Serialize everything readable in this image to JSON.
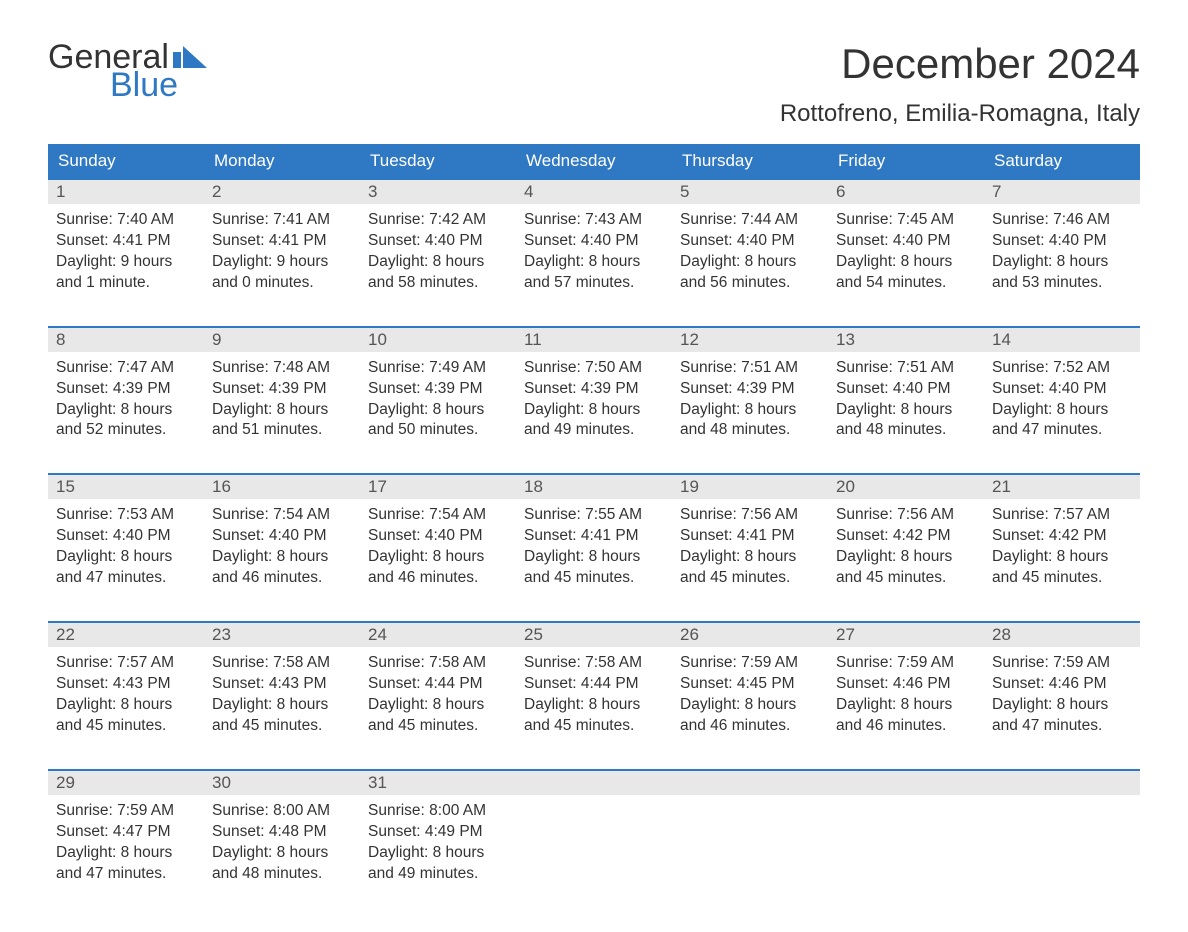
{
  "logo": {
    "word1": "General",
    "word2": "Blue",
    "word1_color": "#333333",
    "word2_color": "#2f78c4"
  },
  "title": "December 2024",
  "location": "Rottofreno, Emilia-Romagna, Italy",
  "colors": {
    "header_bg": "#2f78c4",
    "header_text": "#ffffff",
    "daynum_bg": "#e8e8e8",
    "week_border": "#2f78c4",
    "body_text": "#333333",
    "background": "#ffffff"
  },
  "fonts": {
    "title_size": 42,
    "location_size": 24,
    "header_size": 17,
    "daynum_size": 17,
    "body_size": 15.5
  },
  "weekdays": [
    "Sunday",
    "Monday",
    "Tuesday",
    "Wednesday",
    "Thursday",
    "Friday",
    "Saturday"
  ],
  "weeks": [
    {
      "days": [
        {
          "num": "1",
          "sunrise": "Sunrise: 7:40 AM",
          "sunset": "Sunset: 4:41 PM",
          "dl1": "Daylight: 9 hours",
          "dl2": "and 1 minute."
        },
        {
          "num": "2",
          "sunrise": "Sunrise: 7:41 AM",
          "sunset": "Sunset: 4:41 PM",
          "dl1": "Daylight: 9 hours",
          "dl2": "and 0 minutes."
        },
        {
          "num": "3",
          "sunrise": "Sunrise: 7:42 AM",
          "sunset": "Sunset: 4:40 PM",
          "dl1": "Daylight: 8 hours",
          "dl2": "and 58 minutes."
        },
        {
          "num": "4",
          "sunrise": "Sunrise: 7:43 AM",
          "sunset": "Sunset: 4:40 PM",
          "dl1": "Daylight: 8 hours",
          "dl2": "and 57 minutes."
        },
        {
          "num": "5",
          "sunrise": "Sunrise: 7:44 AM",
          "sunset": "Sunset: 4:40 PM",
          "dl1": "Daylight: 8 hours",
          "dl2": "and 56 minutes."
        },
        {
          "num": "6",
          "sunrise": "Sunrise: 7:45 AM",
          "sunset": "Sunset: 4:40 PM",
          "dl1": "Daylight: 8 hours",
          "dl2": "and 54 minutes."
        },
        {
          "num": "7",
          "sunrise": "Sunrise: 7:46 AM",
          "sunset": "Sunset: 4:40 PM",
          "dl1": "Daylight: 8 hours",
          "dl2": "and 53 minutes."
        }
      ]
    },
    {
      "days": [
        {
          "num": "8",
          "sunrise": "Sunrise: 7:47 AM",
          "sunset": "Sunset: 4:39 PM",
          "dl1": "Daylight: 8 hours",
          "dl2": "and 52 minutes."
        },
        {
          "num": "9",
          "sunrise": "Sunrise: 7:48 AM",
          "sunset": "Sunset: 4:39 PM",
          "dl1": "Daylight: 8 hours",
          "dl2": "and 51 minutes."
        },
        {
          "num": "10",
          "sunrise": "Sunrise: 7:49 AM",
          "sunset": "Sunset: 4:39 PM",
          "dl1": "Daylight: 8 hours",
          "dl2": "and 50 minutes."
        },
        {
          "num": "11",
          "sunrise": "Sunrise: 7:50 AM",
          "sunset": "Sunset: 4:39 PM",
          "dl1": "Daylight: 8 hours",
          "dl2": "and 49 minutes."
        },
        {
          "num": "12",
          "sunrise": "Sunrise: 7:51 AM",
          "sunset": "Sunset: 4:39 PM",
          "dl1": "Daylight: 8 hours",
          "dl2": "and 48 minutes."
        },
        {
          "num": "13",
          "sunrise": "Sunrise: 7:51 AM",
          "sunset": "Sunset: 4:40 PM",
          "dl1": "Daylight: 8 hours",
          "dl2": "and 48 minutes."
        },
        {
          "num": "14",
          "sunrise": "Sunrise: 7:52 AM",
          "sunset": "Sunset: 4:40 PM",
          "dl1": "Daylight: 8 hours",
          "dl2": "and 47 minutes."
        }
      ]
    },
    {
      "days": [
        {
          "num": "15",
          "sunrise": "Sunrise: 7:53 AM",
          "sunset": "Sunset: 4:40 PM",
          "dl1": "Daylight: 8 hours",
          "dl2": "and 47 minutes."
        },
        {
          "num": "16",
          "sunrise": "Sunrise: 7:54 AM",
          "sunset": "Sunset: 4:40 PM",
          "dl1": "Daylight: 8 hours",
          "dl2": "and 46 minutes."
        },
        {
          "num": "17",
          "sunrise": "Sunrise: 7:54 AM",
          "sunset": "Sunset: 4:40 PM",
          "dl1": "Daylight: 8 hours",
          "dl2": "and 46 minutes."
        },
        {
          "num": "18",
          "sunrise": "Sunrise: 7:55 AM",
          "sunset": "Sunset: 4:41 PM",
          "dl1": "Daylight: 8 hours",
          "dl2": "and 45 minutes."
        },
        {
          "num": "19",
          "sunrise": "Sunrise: 7:56 AM",
          "sunset": "Sunset: 4:41 PM",
          "dl1": "Daylight: 8 hours",
          "dl2": "and 45 minutes."
        },
        {
          "num": "20",
          "sunrise": "Sunrise: 7:56 AM",
          "sunset": "Sunset: 4:42 PM",
          "dl1": "Daylight: 8 hours",
          "dl2": "and 45 minutes."
        },
        {
          "num": "21",
          "sunrise": "Sunrise: 7:57 AM",
          "sunset": "Sunset: 4:42 PM",
          "dl1": "Daylight: 8 hours",
          "dl2": "and 45 minutes."
        }
      ]
    },
    {
      "days": [
        {
          "num": "22",
          "sunrise": "Sunrise: 7:57 AM",
          "sunset": "Sunset: 4:43 PM",
          "dl1": "Daylight: 8 hours",
          "dl2": "and 45 minutes."
        },
        {
          "num": "23",
          "sunrise": "Sunrise: 7:58 AM",
          "sunset": "Sunset: 4:43 PM",
          "dl1": "Daylight: 8 hours",
          "dl2": "and 45 minutes."
        },
        {
          "num": "24",
          "sunrise": "Sunrise: 7:58 AM",
          "sunset": "Sunset: 4:44 PM",
          "dl1": "Daylight: 8 hours",
          "dl2": "and 45 minutes."
        },
        {
          "num": "25",
          "sunrise": "Sunrise: 7:58 AM",
          "sunset": "Sunset: 4:44 PM",
          "dl1": "Daylight: 8 hours",
          "dl2": "and 45 minutes."
        },
        {
          "num": "26",
          "sunrise": "Sunrise: 7:59 AM",
          "sunset": "Sunset: 4:45 PM",
          "dl1": "Daylight: 8 hours",
          "dl2": "and 46 minutes."
        },
        {
          "num": "27",
          "sunrise": "Sunrise: 7:59 AM",
          "sunset": "Sunset: 4:46 PM",
          "dl1": "Daylight: 8 hours",
          "dl2": "and 46 minutes."
        },
        {
          "num": "28",
          "sunrise": "Sunrise: 7:59 AM",
          "sunset": "Sunset: 4:46 PM",
          "dl1": "Daylight: 8 hours",
          "dl2": "and 47 minutes."
        }
      ]
    },
    {
      "days": [
        {
          "num": "29",
          "sunrise": "Sunrise: 7:59 AM",
          "sunset": "Sunset: 4:47 PM",
          "dl1": "Daylight: 8 hours",
          "dl2": "and 47 minutes."
        },
        {
          "num": "30",
          "sunrise": "Sunrise: 8:00 AM",
          "sunset": "Sunset: 4:48 PM",
          "dl1": "Daylight: 8 hours",
          "dl2": "and 48 minutes."
        },
        {
          "num": "31",
          "sunrise": "Sunrise: 8:00 AM",
          "sunset": "Sunset: 4:49 PM",
          "dl1": "Daylight: 8 hours",
          "dl2": "and 49 minutes."
        },
        null,
        null,
        null,
        null
      ]
    }
  ]
}
